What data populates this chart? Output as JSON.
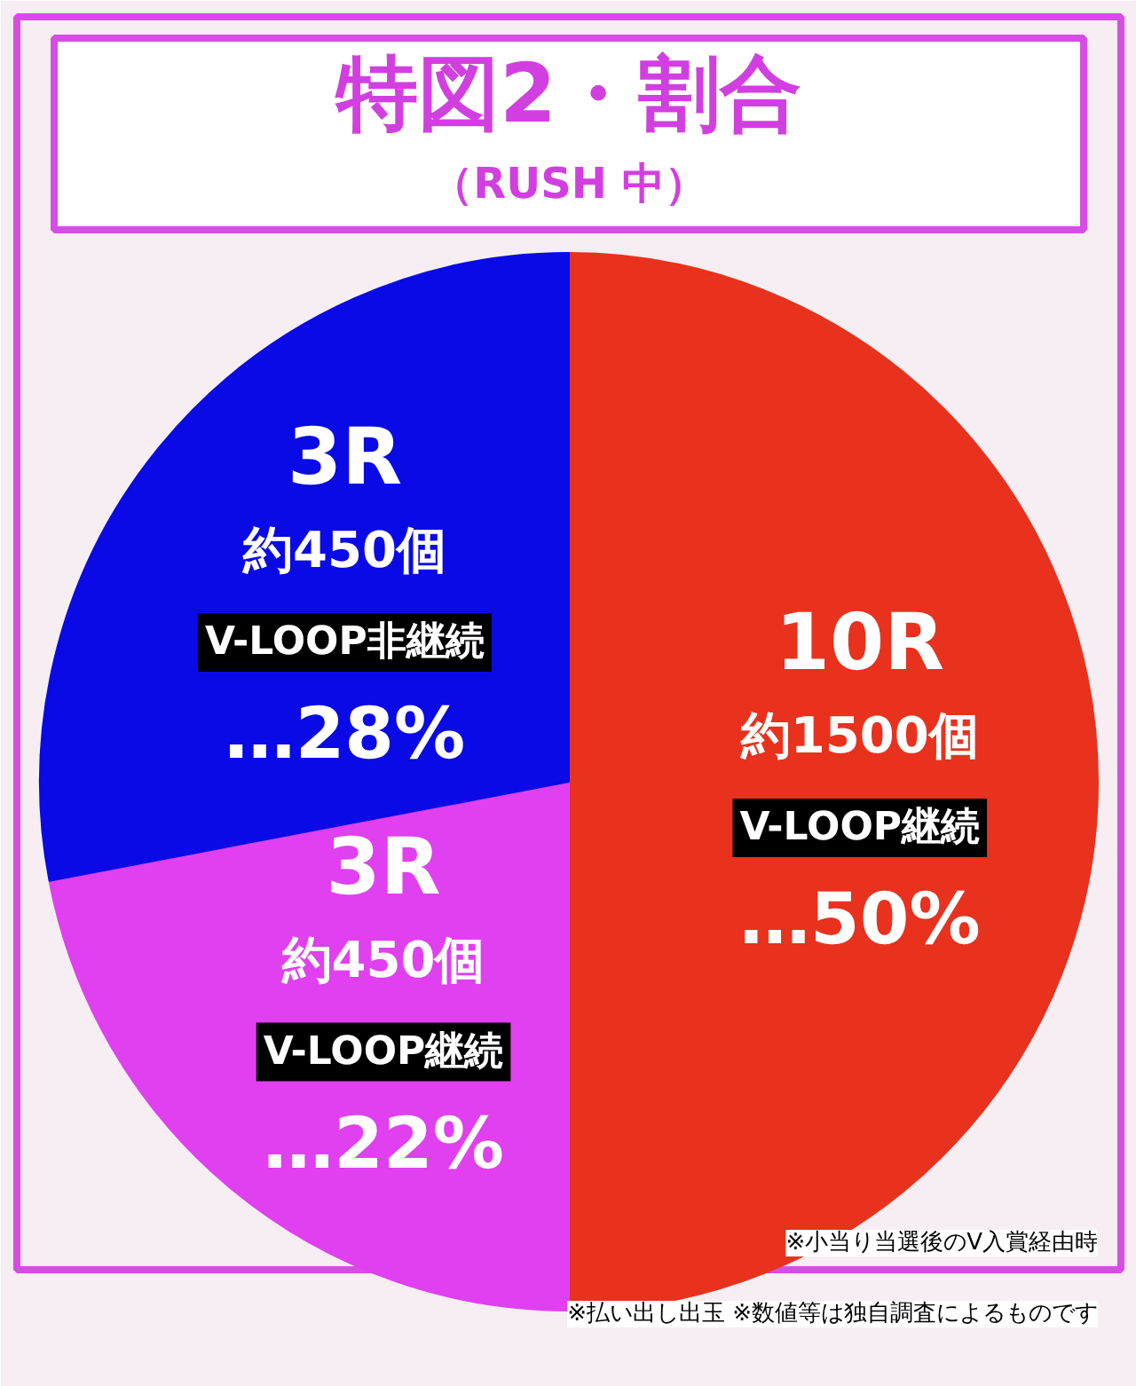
{
  "chart_data": {
    "type": "pie",
    "title": "特図2・割合",
    "subtitle": "（RUSH 中）",
    "categories": [
      "10R\n約1500個\nV-LOOP継続",
      "3R\n約450個\nV-LOOP継続",
      "3R\n約450個\nV-LOOP非継続"
    ],
    "values": [
      50,
      22,
      28
    ],
    "colors": [
      "#e8321e",
      "#e040f0",
      "#0a0ae6"
    ],
    "value_labels": [
      "…50%",
      "…22%",
      "…28%"
    ],
    "annotations": [
      "※小当り当選後のV入賞経由時",
      "※払い出し出玉 ※数値等は独自調査によるものです"
    ]
  }
}
